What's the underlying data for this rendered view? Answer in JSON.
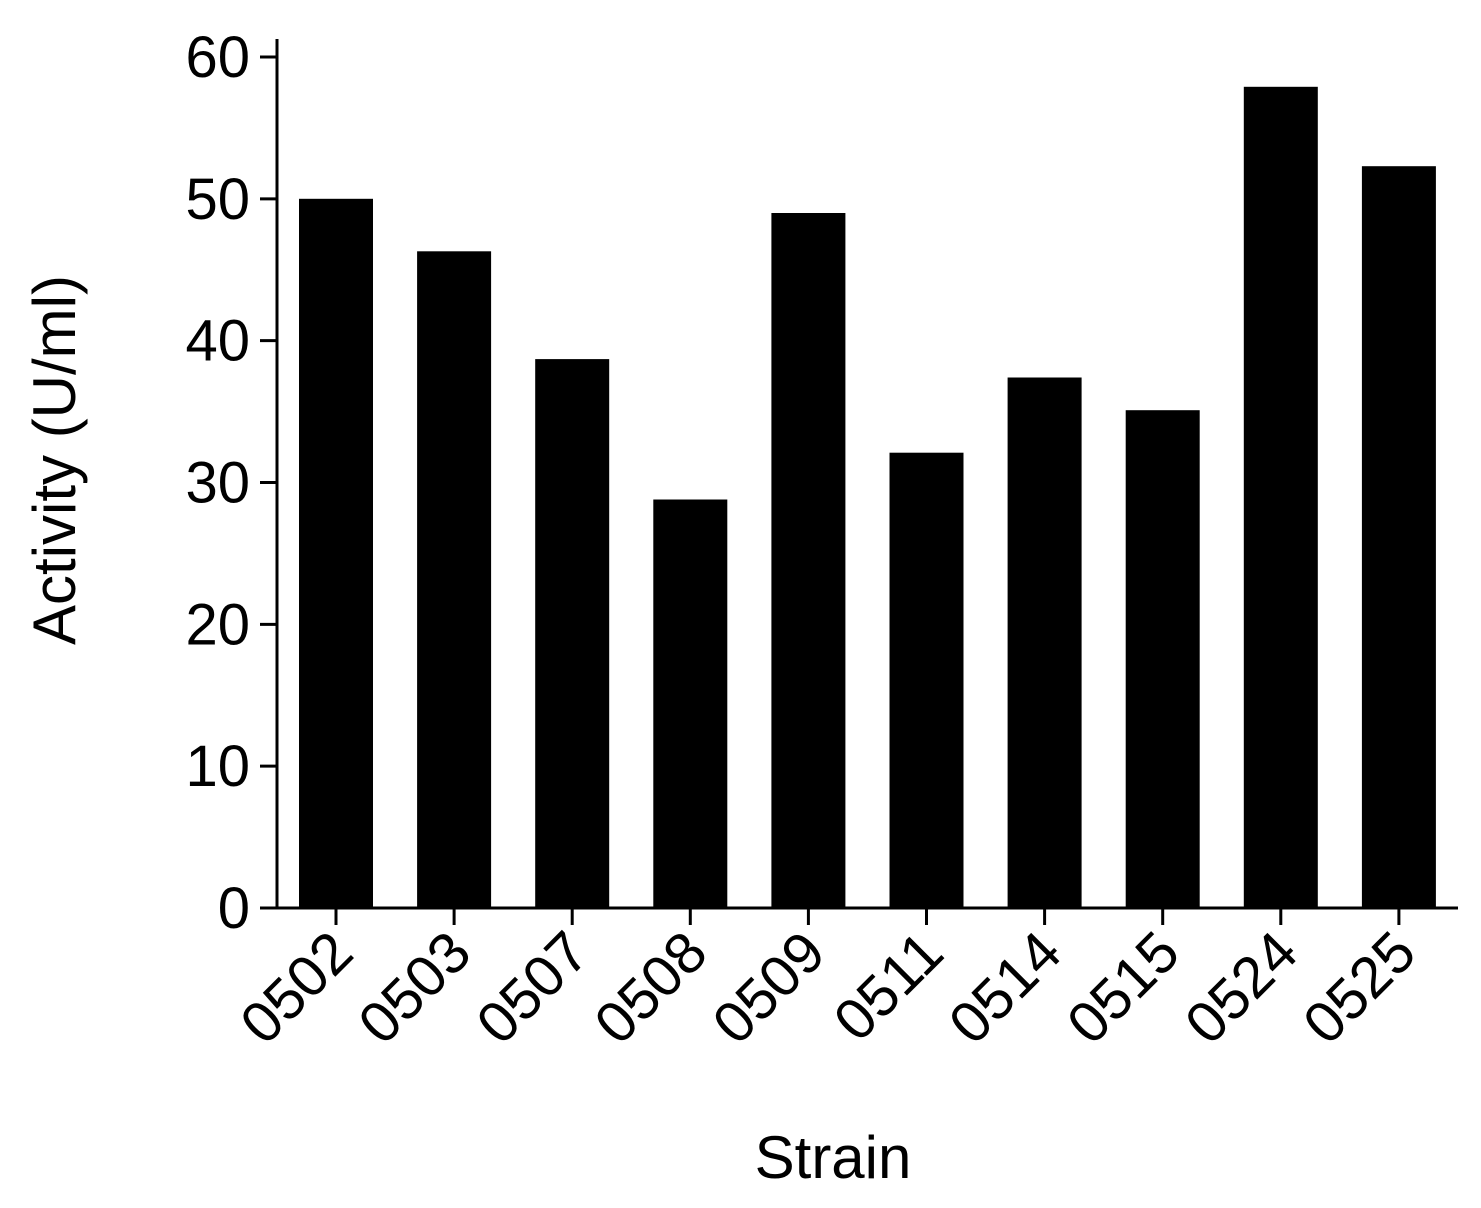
{
  "chart_data": {
    "type": "bar",
    "categories": [
      "0502",
      "0503",
      "0507",
      "0508",
      "0509",
      "0511",
      "0514",
      "0515",
      "0524",
      "0525"
    ],
    "values": [
      50.0,
      46.3,
      38.7,
      28.8,
      49.0,
      32.1,
      37.4,
      35.1,
      57.9,
      52.3
    ],
    "title": "",
    "xlabel": "Strain",
    "ylabel": "Activity (U/ml)",
    "ylim": [
      0,
      60
    ],
    "yticks": [
      0,
      10,
      20,
      30,
      40,
      50,
      60
    ],
    "grid": false,
    "legend": "none",
    "bar_color": "#000000",
    "axis_color": "#000000"
  }
}
